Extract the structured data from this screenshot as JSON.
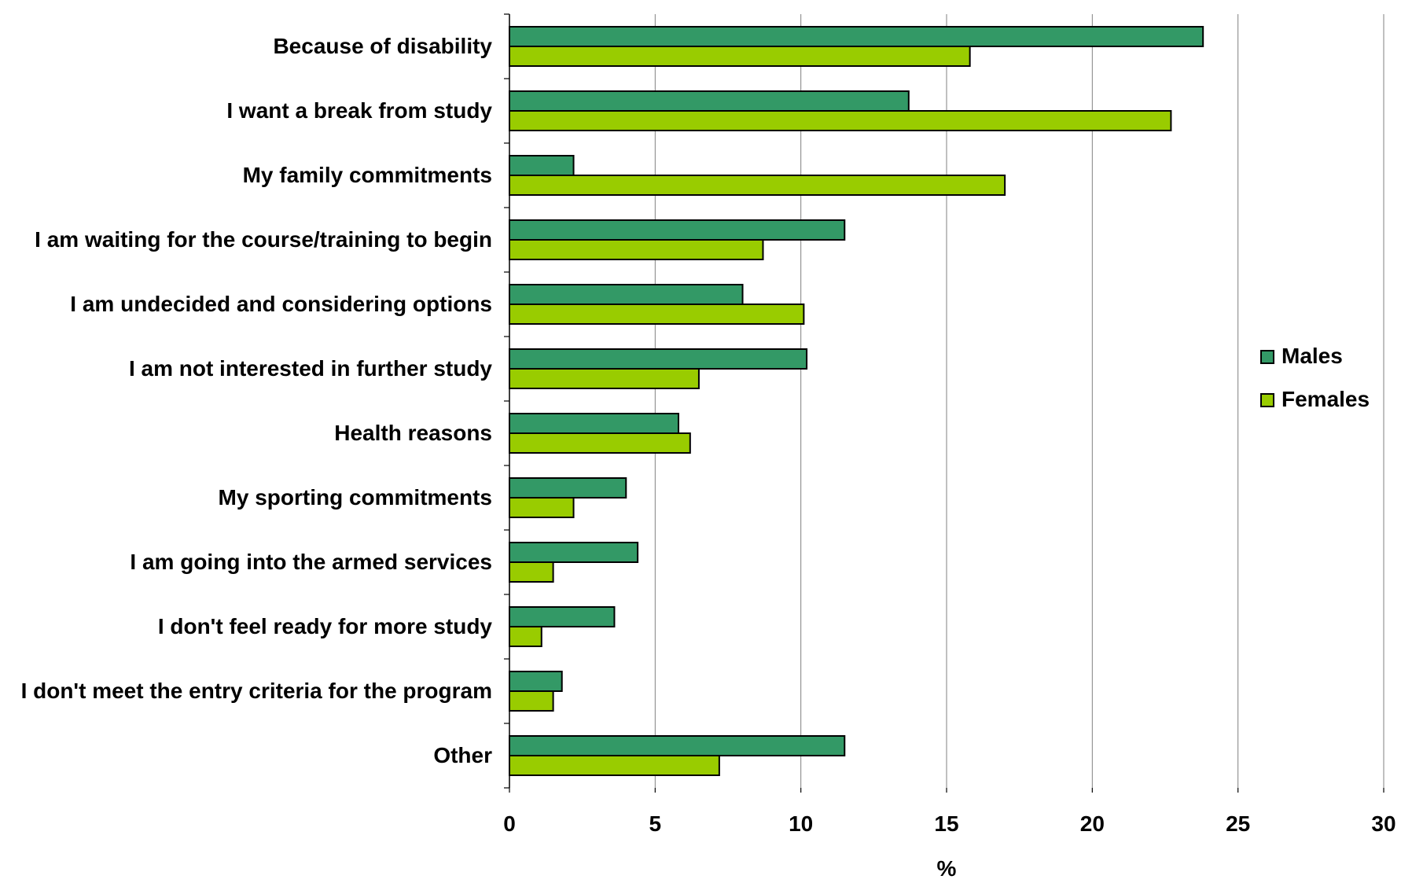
{
  "chart_data": {
    "type": "bar",
    "orientation": "horizontal",
    "categories": [
      "Because of disability",
      "I want a break from study",
      "My family commitments",
      "I am waiting for the course/training to begin",
      "I am undecided and considering options",
      "I am not interested in further study",
      "Health reasons",
      "My sporting commitments",
      "I am going into the armed services",
      "I don't feel ready for more study",
      "I don't meet the entry criteria for the program",
      "Other"
    ],
    "series": [
      {
        "name": "Males",
        "color": "#339966",
        "values": [
          23.8,
          13.7,
          2.2,
          11.5,
          8.0,
          10.2,
          5.8,
          4.0,
          4.4,
          3.6,
          1.8,
          11.5
        ]
      },
      {
        "name": "Females",
        "color": "#99CC00",
        "values": [
          15.8,
          22.7,
          17.0,
          8.7,
          10.1,
          6.5,
          6.2,
          2.2,
          1.5,
          1.1,
          1.5,
          7.2
        ]
      }
    ],
    "xlabel": "%",
    "xlim": [
      0,
      30
    ],
    "xticks": [
      "0",
      "5",
      "10",
      "15",
      "20",
      "25",
      "30"
    ],
    "grid": true,
    "legend_position": "right",
    "bar_outline_color": "#000000"
  }
}
